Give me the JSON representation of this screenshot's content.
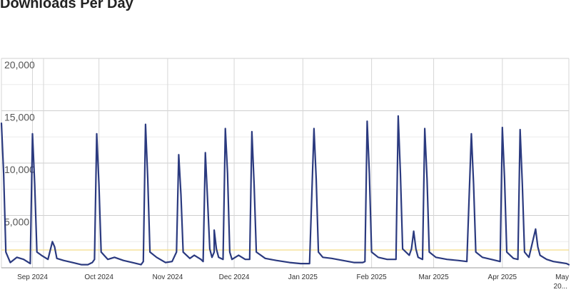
{
  "chart_data": {
    "type": "line",
    "title": "Downloads Per Day",
    "xlabel": "",
    "ylabel": "",
    "ylim": [
      0,
      20000
    ],
    "x_range": [
      "2024-08-18",
      "2025-05-01"
    ],
    "y_ticks": [
      {
        "value": 20000,
        "label": "20,000"
      },
      {
        "value": 15000,
        "label": "15,000"
      },
      {
        "value": 10000,
        "label": "10,000"
      },
      {
        "value": 5000,
        "label": "5,000"
      }
    ],
    "x_ticks": [
      {
        "date": "2024-09-01",
        "label": "Sep 2024"
      },
      {
        "date": "2024-10-01",
        "label": "Oct 2024"
      },
      {
        "date": "2024-11-01",
        "label": "Nov 2024"
      },
      {
        "date": "2024-12-01",
        "label": "Dec 2024"
      },
      {
        "date": "2025-01-01",
        "label": "Jan 2025"
      },
      {
        "date": "2025-02-01",
        "label": "Feb 2025"
      },
      {
        "date": "2025-03-01",
        "label": "Mar 2025"
      },
      {
        "date": "2025-04-01",
        "label": "Apr 2025"
      },
      {
        "date": "2025-05-01",
        "label": "May",
        "label2": "20..."
      }
    ],
    "reference_line": {
      "value": 1700,
      "color": "#f3dc86"
    },
    "grid": true,
    "series": [
      {
        "color": "#2b3a7f",
        "points": [
          [
            "2024-08-18",
            13800
          ],
          [
            "2024-08-19",
            9000
          ],
          [
            "2024-08-20",
            1500
          ],
          [
            "2024-08-22",
            500
          ],
          [
            "2024-08-25",
            1000
          ],
          [
            "2024-08-28",
            800
          ],
          [
            "2024-08-31",
            400
          ],
          [
            "2024-08-31",
            400
          ],
          [
            "2024-09-01",
            12800
          ],
          [
            "2024-09-02",
            8000
          ],
          [
            "2024-09-03",
            1500
          ],
          [
            "2024-09-05",
            1200
          ],
          [
            "2024-09-08",
            800
          ],
          [
            "2024-09-10",
            2500
          ],
          [
            "2024-09-11",
            2000
          ],
          [
            "2024-09-12",
            900
          ],
          [
            "2024-09-15",
            700
          ],
          [
            "2024-09-19",
            500
          ],
          [
            "2024-09-23",
            300
          ],
          [
            "2024-09-26",
            300
          ],
          [
            "2024-09-28",
            500
          ],
          [
            "2024-09-29",
            800
          ],
          [
            "2024-09-30",
            12800
          ],
          [
            "2024-10-01",
            8000
          ],
          [
            "2024-10-02",
            1500
          ],
          [
            "2024-10-05",
            800
          ],
          [
            "2024-10-08",
            1000
          ],
          [
            "2024-10-12",
            700
          ],
          [
            "2024-10-16",
            500
          ],
          [
            "2024-10-20",
            300
          ],
          [
            "2024-10-21",
            600
          ],
          [
            "2024-10-22",
            13700
          ],
          [
            "2024-10-23",
            8500
          ],
          [
            "2024-10-24",
            1500
          ],
          [
            "2024-10-27",
            1000
          ],
          [
            "2024-10-31",
            500
          ],
          [
            "2024-11-03",
            600
          ],
          [
            "2024-11-05",
            1500
          ],
          [
            "2024-11-06",
            10800
          ],
          [
            "2024-11-07",
            7000
          ],
          [
            "2024-11-08",
            1500
          ],
          [
            "2024-11-11",
            900
          ],
          [
            "2024-11-13",
            1200
          ],
          [
            "2024-11-16",
            800
          ],
          [
            "2024-11-17",
            600
          ],
          [
            "2024-11-18",
            11000
          ],
          [
            "2024-11-19",
            6500
          ],
          [
            "2024-11-20",
            1800
          ],
          [
            "2024-11-21",
            1000
          ],
          [
            "2024-11-22",
            1500
          ],
          [
            "2024-11-22",
            3600
          ],
          [
            "2024-11-23",
            1800
          ],
          [
            "2024-11-24",
            1000
          ],
          [
            "2024-11-26",
            800
          ],
          [
            "2024-11-27",
            13300
          ],
          [
            "2024-11-28",
            9000
          ],
          [
            "2024-11-29",
            1500
          ],
          [
            "2024-11-30",
            800
          ],
          [
            "2024-12-03",
            1200
          ],
          [
            "2024-12-06",
            800
          ],
          [
            "2024-12-07",
            800
          ],
          [
            "2024-12-08",
            800
          ],
          [
            "2024-12-09",
            13000
          ],
          [
            "2024-12-10",
            8000
          ],
          [
            "2024-12-11",
            1500
          ],
          [
            "2024-12-15",
            900
          ],
          [
            "2024-12-20",
            700
          ],
          [
            "2024-12-26",
            500
          ],
          [
            "2024-12-31",
            400
          ],
          [
            "2025-01-04",
            400
          ],
          [
            "2025-01-06",
            13300
          ],
          [
            "2025-01-07",
            8500
          ],
          [
            "2025-01-08",
            1500
          ],
          [
            "2025-01-10",
            1000
          ],
          [
            "2025-01-14",
            900
          ],
          [
            "2025-01-19",
            700
          ],
          [
            "2025-01-24",
            500
          ],
          [
            "2025-01-28",
            500
          ],
          [
            "2025-01-29",
            600
          ],
          [
            "2025-01-30",
            14000
          ],
          [
            "2025-01-31",
            9000
          ],
          [
            "2025-02-01",
            1500
          ],
          [
            "2025-02-04",
            1000
          ],
          [
            "2025-02-08",
            800
          ],
          [
            "2025-02-12",
            800
          ],
          [
            "2025-02-13",
            14500
          ],
          [
            "2025-02-14",
            9000
          ],
          [
            "2025-02-15",
            1800
          ],
          [
            "2025-02-18",
            1200
          ],
          [
            "2025-02-19",
            1800
          ],
          [
            "2025-02-20",
            3500
          ],
          [
            "2025-02-21",
            1800
          ],
          [
            "2025-02-22",
            1000
          ],
          [
            "2025-02-24",
            800
          ],
          [
            "2025-02-25",
            13300
          ],
          [
            "2025-02-26",
            8500
          ],
          [
            "2025-02-27",
            1500
          ],
          [
            "2025-03-02",
            1000
          ],
          [
            "2025-03-07",
            800
          ],
          [
            "2025-03-12",
            700
          ],
          [
            "2025-03-16",
            600
          ],
          [
            "2025-03-18",
            12800
          ],
          [
            "2025-03-19",
            8000
          ],
          [
            "2025-03-20",
            1500
          ],
          [
            "2025-03-23",
            1000
          ],
          [
            "2025-03-27",
            800
          ],
          [
            "2025-03-31",
            600
          ],
          [
            "2025-04-01",
            13400
          ],
          [
            "2025-04-02",
            8500
          ],
          [
            "2025-04-03",
            1500
          ],
          [
            "2025-04-06",
            900
          ],
          [
            "2025-04-08",
            800
          ],
          [
            "2025-04-09",
            13200
          ],
          [
            "2025-04-10",
            8000
          ],
          [
            "2025-04-11",
            1500
          ],
          [
            "2025-04-13",
            1000
          ],
          [
            "2025-04-16",
            3700
          ],
          [
            "2025-04-17",
            2000
          ],
          [
            "2025-04-18",
            1200
          ],
          [
            "2025-04-21",
            800
          ],
          [
            "2025-04-24",
            600
          ],
          [
            "2025-04-27",
            500
          ],
          [
            "2025-04-30",
            400
          ],
          [
            "2025-05-01",
            300
          ]
        ]
      }
    ]
  }
}
